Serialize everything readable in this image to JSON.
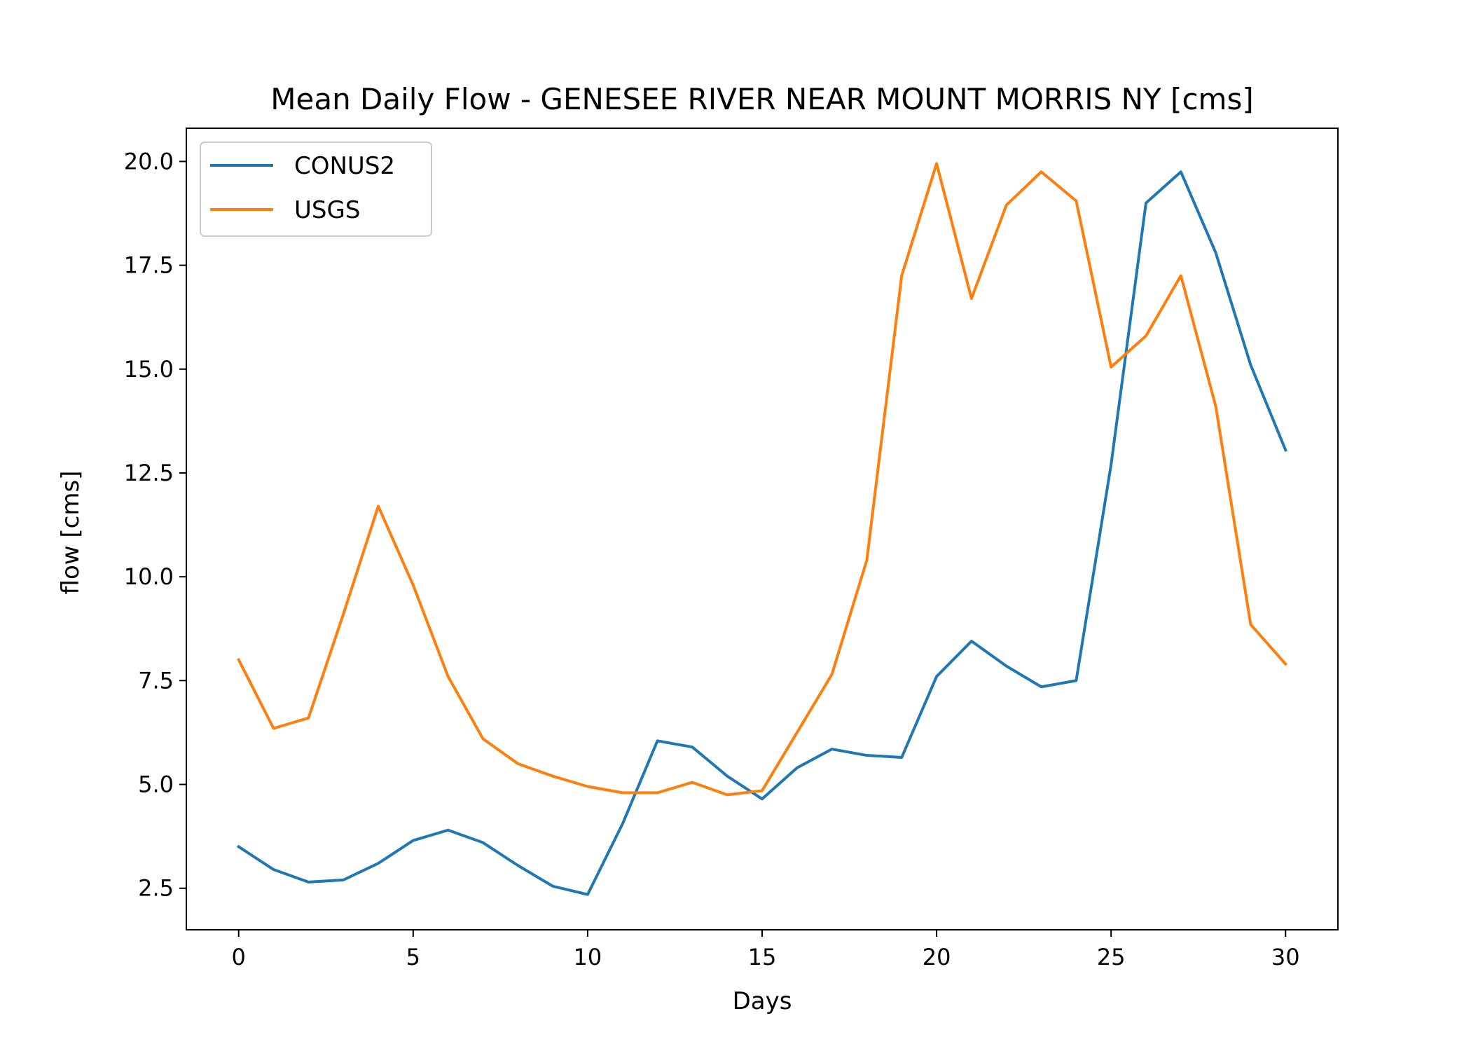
{
  "chart_data": {
    "type": "line",
    "title": "Mean Daily Flow - GENESEE RIVER NEAR MOUNT MORRIS NY [cms]",
    "xlabel": "Days",
    "ylabel": "flow [cms]",
    "xlim": [
      -1.5,
      31.5
    ],
    "ylim": [
      1.5,
      20.8
    ],
    "xticks": [
      0,
      5,
      10,
      15,
      20,
      25,
      30
    ],
    "yticks": [
      2.5,
      5.0,
      7.5,
      10.0,
      12.5,
      15.0,
      17.5,
      20.0
    ],
    "yticklabels": [
      "2.5",
      "5.0",
      "7.5",
      "10.0",
      "12.5",
      "15.0",
      "17.5",
      "20.0"
    ],
    "legend_position": "top-left",
    "x": [
      0,
      1,
      2,
      3,
      4,
      5,
      6,
      7,
      8,
      9,
      10,
      11,
      12,
      13,
      14,
      15,
      16,
      17,
      18,
      19,
      20,
      21,
      22,
      23,
      24,
      25,
      26,
      27,
      28,
      29,
      30
    ],
    "series": [
      {
        "name": "CONUS2",
        "color": "#1f77b4",
        "values": [
          3.5,
          2.95,
          2.65,
          2.7,
          3.1,
          3.65,
          3.9,
          3.6,
          3.05,
          2.55,
          2.35,
          4.05,
          6.05,
          5.9,
          5.2,
          4.65,
          5.4,
          5.85,
          5.7,
          5.65,
          7.6,
          8.45,
          7.85,
          7.35,
          7.5,
          12.7,
          19.0,
          19.75,
          17.8,
          15.1,
          13.05
        ]
      },
      {
        "name": "USGS",
        "color": "#ff7f0e",
        "values": [
          8.0,
          6.35,
          6.6,
          9.1,
          11.7,
          9.8,
          7.6,
          6.1,
          5.5,
          5.2,
          4.95,
          4.8,
          4.8,
          5.05,
          4.75,
          4.85,
          6.25,
          7.65,
          10.4,
          17.25,
          19.95,
          16.7,
          18.95,
          19.75,
          19.05,
          15.05,
          15.8,
          17.25,
          14.1,
          8.85,
          7.9
        ]
      }
    ]
  }
}
